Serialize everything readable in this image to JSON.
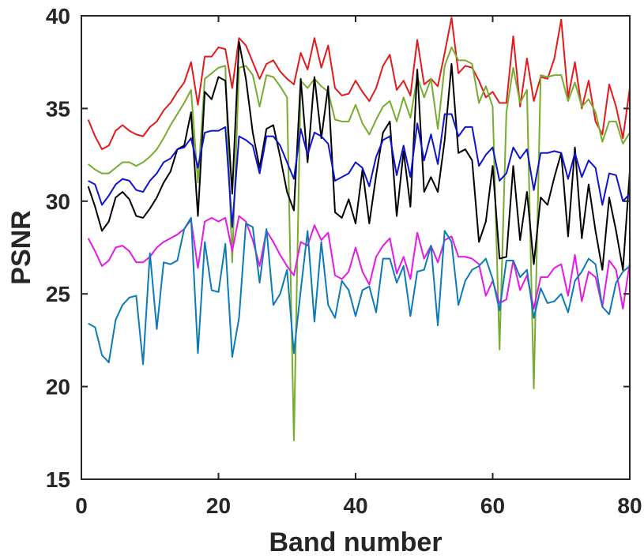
{
  "chart_data": {
    "type": "line",
    "title": "",
    "xlabel": "Band number",
    "ylabel": "PSNR",
    "xlim": [
      0,
      80
    ],
    "ylim": [
      15,
      40
    ],
    "xticks": [
      0,
      20,
      40,
      60,
      80
    ],
    "yticks": [
      15,
      20,
      25,
      30,
      35,
      40
    ],
    "grid": false,
    "legend": "none",
    "x": [
      1,
      2,
      3,
      4,
      5,
      6,
      7,
      8,
      9,
      10,
      11,
      12,
      13,
      14,
      15,
      16,
      17,
      18,
      19,
      20,
      21,
      22,
      23,
      24,
      25,
      26,
      27,
      28,
      29,
      30,
      31,
      32,
      33,
      34,
      35,
      36,
      37,
      38,
      39,
      40,
      41,
      42,
      43,
      44,
      45,
      46,
      47,
      48,
      49,
      50,
      51,
      52,
      53,
      54,
      55,
      56,
      57,
      58,
      59,
      60,
      61,
      62,
      63,
      64,
      65,
      66,
      67,
      68,
      69,
      70,
      71,
      72,
      73,
      74,
      75,
      76,
      77,
      78,
      79,
      80
    ],
    "series": [
      {
        "color": "#e31a1c",
        "values": [
          34.4,
          33.5,
          32.8,
          33.0,
          33.8,
          34.1,
          33.8,
          33.6,
          33.5,
          34.0,
          34.3,
          34.9,
          35.3,
          35.9,
          36.4,
          37.5,
          35.2,
          37.8,
          37.8,
          38.3,
          38.2,
          36.1,
          38.8,
          38.4,
          37.5,
          36.6,
          37.4,
          37.6,
          37.0,
          36.6,
          36.3,
          38.0,
          37.1,
          38.8,
          37.2,
          38.4,
          36.1,
          35.7,
          35.8,
          36.5,
          35.9,
          35.4,
          36.1,
          37.3,
          37.9,
          36.0,
          36.5,
          35.7,
          38.7,
          36.3,
          36.6,
          36.2,
          38.0,
          39.9,
          36.9,
          37.3,
          37.2,
          36.5,
          35.6,
          35.9,
          35.3,
          35.3,
          38.9,
          35.1,
          37.7,
          35.4,
          36.7,
          36.6,
          37.7,
          39.8,
          35.6,
          37.5,
          35.0,
          36.5,
          34.3,
          33.6,
          36.3,
          35.1,
          33.4,
          36.1
        ]
      },
      {
        "color": "#77ac30",
        "values": [
          32.0,
          31.7,
          31.5,
          31.5,
          31.8,
          32.1,
          32.1,
          31.9,
          32.1,
          32.4,
          32.8,
          33.4,
          34.1,
          34.7,
          35.3,
          36.0,
          31.0,
          36.6,
          36.9,
          37.2,
          37.3,
          26.7,
          37.2,
          37.3,
          36.8,
          35.1,
          36.8,
          36.7,
          36.2,
          35.6,
          17.1,
          36.5,
          36.1,
          36.6,
          36.2,
          35.9,
          34.4,
          34.3,
          34.3,
          35.2,
          34.2,
          33.6,
          34.4,
          35.1,
          35.4,
          34.3,
          35.6,
          34.5,
          36.7,
          35.6,
          36.6,
          33.9,
          37.3,
          38.3,
          37.6,
          37.6,
          37.4,
          35.3,
          36.2,
          35.1,
          22.0,
          34.8,
          37.2,
          35.3,
          36.0,
          19.9,
          36.8,
          36.7,
          36.8,
          36.8,
          35.4,
          36.4,
          35.1,
          35.5,
          34.8,
          33.2,
          34.3,
          34.3,
          33.1,
          33.7
        ]
      },
      {
        "color": "#000000",
        "values": [
          30.8,
          29.7,
          28.4,
          28.9,
          30.2,
          30.5,
          30.1,
          29.2,
          29.1,
          29.6,
          30.2,
          31.0,
          31.6,
          32.8,
          33.0,
          34.8,
          29.2,
          35.9,
          35.5,
          36.7,
          36.5,
          30.4,
          38.6,
          36.6,
          33.7,
          31.8,
          33.9,
          34.1,
          32.4,
          30.5,
          29.5,
          36.6,
          32.1,
          36.7,
          33.4,
          36.2,
          29.4,
          29.1,
          30.1,
          28.8,
          31.7,
          28.8,
          31.4,
          33.7,
          34.3,
          29.2,
          32.7,
          29.7,
          37.1,
          30.5,
          31.3,
          30.5,
          33.3,
          37.4,
          32.6,
          32.8,
          32.2,
          27.8,
          28.9,
          31.9,
          26.9,
          27.0,
          31.9,
          27.9,
          30.5,
          26.6,
          30.2,
          29.8,
          31.3,
          32.6,
          28.1,
          32.9,
          28.0,
          30.9,
          28.4,
          26.3,
          30.2,
          28.4,
          26.3,
          31.6
        ]
      },
      {
        "color": "#0d13cf",
        "values": [
          31.1,
          30.9,
          29.8,
          30.3,
          30.9,
          31.2,
          31.1,
          30.6,
          30.5,
          31.1,
          31.5,
          32.1,
          32.3,
          32.8,
          32.9,
          33.4,
          31.8,
          33.7,
          33.8,
          33.8,
          34.0,
          28.6,
          33.5,
          33.3,
          33.0,
          31.5,
          33.5,
          33.5,
          33.0,
          32.1,
          31.2,
          33.9,
          32.5,
          33.7,
          33.5,
          33.1,
          31.1,
          31.3,
          31.5,
          32.1,
          31.8,
          30.8,
          32.4,
          33.3,
          33.5,
          31.4,
          33.0,
          31.3,
          34.2,
          32.2,
          33.6,
          32.0,
          34.7,
          34.7,
          33.5,
          34.0,
          34.0,
          31.9,
          32.5,
          32.9,
          31.1,
          31.5,
          32.9,
          32.3,
          32.8,
          30.6,
          32.6,
          32.6,
          32.7,
          32.6,
          31.2,
          32.6,
          31.3,
          32.2,
          31.8,
          29.8,
          31.5,
          31.4,
          30.0,
          30.4
        ]
      },
      {
        "color": "#e519e5",
        "values": [
          28.0,
          27.3,
          26.5,
          26.8,
          27.5,
          27.6,
          27.3,
          26.7,
          26.7,
          27.0,
          27.5,
          27.8,
          28.0,
          28.2,
          28.5,
          29.0,
          26.4,
          28.9,
          29.1,
          28.9,
          29.1,
          27.3,
          29.2,
          28.9,
          27.9,
          26.5,
          28.4,
          27.8,
          27.1,
          26.5,
          26.0,
          27.8,
          27.6,
          28.7,
          27.9,
          28.3,
          26.0,
          25.8,
          26.2,
          27.5,
          26.2,
          25.5,
          27.0,
          27.6,
          28.0,
          26.1,
          27.0,
          25.8,
          28.3,
          26.9,
          27.6,
          26.7,
          27.9,
          28.1,
          27.0,
          27.0,
          26.9,
          26.6,
          24.9,
          25.7,
          24.5,
          24.7,
          26.8,
          25.2,
          26.0,
          24.2,
          25.9,
          25.9,
          26.4,
          26.6,
          24.9,
          27.1,
          24.6,
          26.2,
          25.9,
          24.3,
          26.8,
          26.3,
          24.2,
          26.7
        ]
      },
      {
        "color": "#0c7ab9",
        "values": [
          23.4,
          23.2,
          21.7,
          21.3,
          23.6,
          24.4,
          24.8,
          24.9,
          21.2,
          27.2,
          23.1,
          26.7,
          26.6,
          26.8,
          28.5,
          29.1,
          21.8,
          27.8,
          25.2,
          25.1,
          27.7,
          21.6,
          23.7,
          28.8,
          28.6,
          25.6,
          28.5,
          24.4,
          25.0,
          26.3,
          21.8,
          25.2,
          28.4,
          23.5,
          27.8,
          24.4,
          23.7,
          25.7,
          25.2,
          23.8,
          25.2,
          25.4,
          24.0,
          26.9,
          26.9,
          25.6,
          26.5,
          23.8,
          26.2,
          26.3,
          27.6,
          23.3,
          28.4,
          27.8,
          24.4,
          25.7,
          26.3,
          26.5,
          26.9,
          25.8,
          24.1,
          26.8,
          26.8,
          25.9,
          26.3,
          23.7,
          25.3,
          24.5,
          24.6,
          25.0,
          24.0,
          25.7,
          26.2,
          26.9,
          26.6,
          24.3,
          23.9,
          25.6,
          26.2,
          26.5
        ]
      }
    ]
  }
}
